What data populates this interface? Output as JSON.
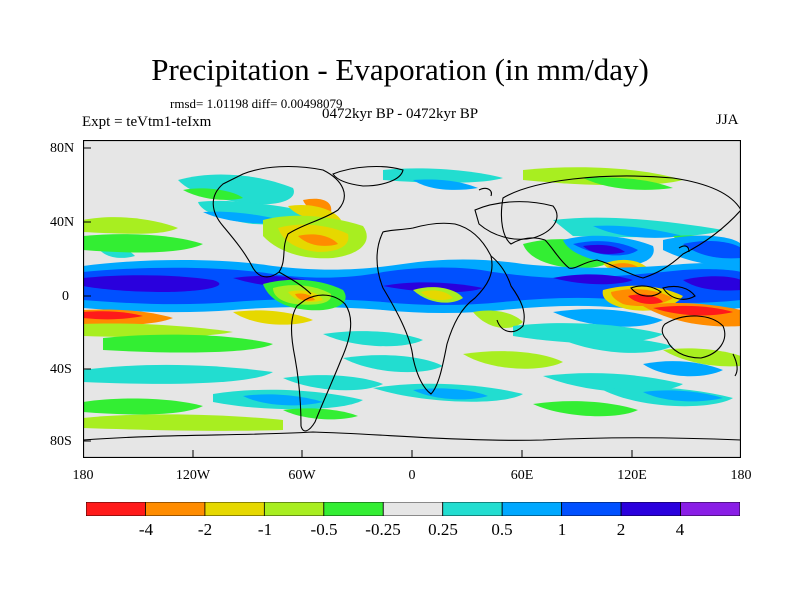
{
  "title": "Precipitation - Evaporation (in mm/day)",
  "stats": "rmsd= 1.01198 diff= 0.00498079",
  "period": "0472kyr BP - 0472kyr BP",
  "experiment": "Expt = teVtm1-teIxm",
  "season": "JJA",
  "lat_ticks": [
    "80N",
    "40N",
    "0",
    "40S",
    "80S"
  ],
  "lon_ticks": [
    "180",
    "120W",
    "60W",
    "0",
    "60E",
    "120E",
    "180"
  ],
  "colorbar": {
    "labels": [
      "-4",
      "-2",
      "-1",
      "-0.5",
      "-0.25",
      "0.25",
      "0.5",
      "1",
      "2",
      "4"
    ],
    "colors": [
      "#ff1a1a",
      "#ff8c00",
      "#e6d800",
      "#a8ee20",
      "#33ee33",
      "#e6e6e6",
      "#22ddd0",
      "#00a8ff",
      "#0050ff",
      "#2a00dd",
      "#8a1ee6"
    ]
  }
}
